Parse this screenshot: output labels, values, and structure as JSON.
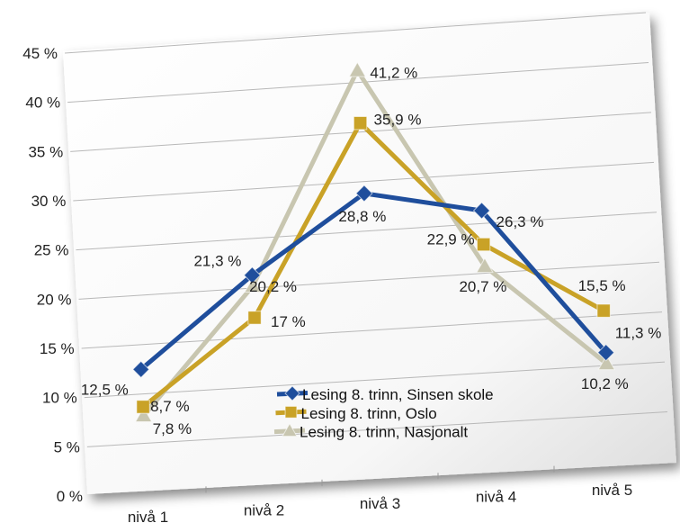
{
  "chart_data": {
    "type": "line",
    "categories": [
      "nivå 1",
      "nivå 2",
      "nivå 3",
      "nivå 4",
      "nivå 5"
    ],
    "y_ticks": [
      "0 %",
      "5 %",
      "10 %",
      "15 %",
      "20 %",
      "25 %",
      "30 %",
      "35 %",
      "40 %",
      "45 %"
    ],
    "ylim": [
      0,
      45
    ],
    "grid": true,
    "legend_position": "bottom-center",
    "series": [
      {
        "name": "Lesing 8. trinn, Sinsen skole",
        "values": [
          12.5,
          21.3,
          28.8,
          26.3,
          11.3
        ],
        "labels": [
          "12,5 %",
          "21,3 %",
          "28,8 %",
          "26,3 %",
          "11,3 %"
        ],
        "color": "#1f4e9c",
        "marker": "diamond"
      },
      {
        "name": "Lesing 8. trinn, Oslo",
        "values": [
          8.7,
          17,
          35.9,
          22.9,
          15.5
        ],
        "labels": [
          "8,7 %",
          "17 %",
          "35,9 %",
          "22,9 %",
          "15,5 %"
        ],
        "color": "#c9a227",
        "marker": "square"
      },
      {
        "name": "Lesing 8. trinn, Nasjonalt",
        "values": [
          7.8,
          20.2,
          41.2,
          20.7,
          10.2
        ],
        "labels": [
          "7,8 %",
          "20,2 %",
          "41,2 %",
          "20,7 %",
          "10,2 %"
        ],
        "color": "#c8c6b0",
        "marker": "triangle"
      }
    ]
  }
}
